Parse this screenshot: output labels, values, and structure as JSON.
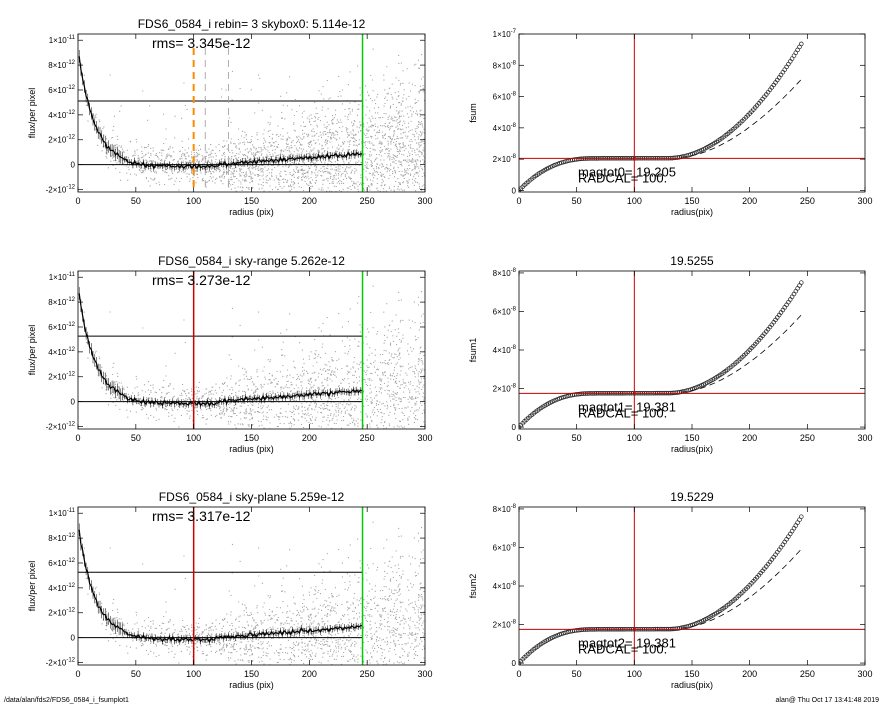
{
  "footer": {
    "path": "/data/alan/fds2/FDS6_0584_i_fsumplot1",
    "user_time": "alan@  Thu Oct 17 13:41:48 2019"
  },
  "colors": {
    "scatter": "#a8a8a8",
    "profile": "#000000",
    "red_line": "#cc0000",
    "green_line": "#00cc00",
    "orange_line": "#ff8c00"
  },
  "chart_data": [
    {
      "type": "scatter",
      "title": "FDS6_0584_i rebin= 3    skybox0:  5.114e-12",
      "annotation": "rms= 3.345e-12",
      "xlabel": "radius (pix)",
      "ylabel": "flux/per pixel",
      "xlim": [
        0,
        300
      ],
      "ylim": [
        -2.2e-12,
        1.05e-11
      ],
      "xticks": [
        "0",
        "50",
        "100",
        "150",
        "200",
        "250",
        "300"
      ],
      "yticks": [
        {
          "v": -2e-12,
          "mant": "-2×10",
          "exp": "-12"
        },
        {
          "v": 0,
          "mant": "0",
          "exp": ""
        },
        {
          "v": 2e-12,
          "mant": "2×10",
          "exp": "-12"
        },
        {
          "v": 4e-12,
          "mant": "4×10",
          "exp": "-12"
        },
        {
          "v": 6e-12,
          "mant": "6×10",
          "exp": "-12"
        },
        {
          "v": 8e-12,
          "mant": "8×10",
          "exp": "-12"
        },
        {
          "v": 1e-11,
          "mant": "1×10",
          "exp": "-11"
        }
      ],
      "hlines": [
        0,
        5.114e-12
      ],
      "hline_xmax": 246,
      "vlines": [
        {
          "x": 100,
          "color": "#ff8c00",
          "style": "dashed",
          "width": 2
        },
        {
          "x": 110,
          "color": "#999999",
          "style": "dashed",
          "width": 0.8
        },
        {
          "x": 130,
          "color": "#999999",
          "style": "dashed",
          "width": 0.8
        },
        {
          "x": 246,
          "color": "#00cc00",
          "style": "solid",
          "width": 1.5
        }
      ]
    },
    {
      "type": "line",
      "title": "",
      "ylabel": "fsum",
      "xlabel": "radius(pix)",
      "xlim": [
        0,
        300
      ],
      "ylim": [
        -1e-09,
        1e-07
      ],
      "xticks": [
        "0",
        "50",
        "100",
        "150",
        "200",
        "250",
        "300"
      ],
      "yticks": [
        {
          "v": 0,
          "mant": "0",
          "exp": ""
        },
        {
          "v": 2e-08,
          "mant": "2×10",
          "exp": "-8"
        },
        {
          "v": 4e-08,
          "mant": "4×10",
          "exp": "-8"
        },
        {
          "v": 6e-08,
          "mant": "6×10",
          "exp": "-8"
        },
        {
          "v": 8e-08,
          "mant": "8×10",
          "exp": "-8"
        },
        {
          "v": 1e-07,
          "mant": "1×10",
          "exp": "-7"
        }
      ],
      "plateau": 2.05e-08,
      "end_value": 9.5e-08,
      "dashed_end": 7.2e-08,
      "hline": 2.05e-08,
      "vline": 100,
      "labels": [
        "magtot0= 19.205",
        "RADCAL= 100."
      ]
    },
    {
      "type": "scatter",
      "title": "FDS6_0584_i sky-range  5.262e-12",
      "annotation": "rms= 3.273e-12",
      "xlabel": "radius (pix)",
      "ylabel": "flux/per pixel",
      "xlim": [
        0,
        300
      ],
      "ylim": [
        -2.2e-12,
        1.05e-11
      ],
      "xticks": [
        "0",
        "50",
        "100",
        "150",
        "200",
        "250",
        "300"
      ],
      "yticks": [
        {
          "v": -2e-12,
          "mant": "-2×10",
          "exp": "-12"
        },
        {
          "v": 0,
          "mant": "0",
          "exp": ""
        },
        {
          "v": 2e-12,
          "mant": "2×10",
          "exp": "-12"
        },
        {
          "v": 4e-12,
          "mant": "4×10",
          "exp": "-12"
        },
        {
          "v": 6e-12,
          "mant": "6×10",
          "exp": "-12"
        },
        {
          "v": 8e-12,
          "mant": "8×10",
          "exp": "-12"
        },
        {
          "v": 1e-11,
          "mant": "1×10",
          "exp": "-11"
        }
      ],
      "hlines": [
        0,
        5.262e-12
      ],
      "hline_xmax": 246,
      "vlines": [
        {
          "x": 100,
          "color": "#cc0000",
          "style": "solid",
          "width": 1.5
        },
        {
          "x": 246,
          "color": "#00cc00",
          "style": "solid",
          "width": 1.5
        }
      ]
    },
    {
      "type": "line",
      "title": "19.5255",
      "ylabel": "fsum1",
      "xlabel": "radius(pix)",
      "xlim": [
        0,
        300
      ],
      "ylim": [
        -1e-09,
        8.1e-08
      ],
      "xticks": [
        "0",
        "50",
        "100",
        "150",
        "200",
        "250",
        "300"
      ],
      "yticks": [
        {
          "v": 0,
          "mant": "0",
          "exp": ""
        },
        {
          "v": 2e-08,
          "mant": "2×10",
          "exp": "-8"
        },
        {
          "v": 4e-08,
          "mant": "4×10",
          "exp": "-8"
        },
        {
          "v": 6e-08,
          "mant": "6×10",
          "exp": "-8"
        },
        {
          "v": 8e-08,
          "mant": "8×10",
          "exp": "-8"
        }
      ],
      "plateau": 1.75e-08,
      "end_value": 7.6e-08,
      "dashed_end": 5.9e-08,
      "hline": 1.75e-08,
      "vline": 100,
      "labels": [
        "magtot1= 19.381",
        "RADCAL= 100."
      ]
    },
    {
      "type": "scatter",
      "title": "FDS6_0584_i sky-plane  5.259e-12",
      "annotation": "rms= 3.317e-12",
      "xlabel": "radius (pix)",
      "ylabel": "flux/per pixel",
      "xlim": [
        0,
        300
      ],
      "ylim": [
        -2.2e-12,
        1.05e-11
      ],
      "xticks": [
        "0",
        "50",
        "100",
        "150",
        "200",
        "250",
        "300"
      ],
      "yticks": [
        {
          "v": -2e-12,
          "mant": "-2×10",
          "exp": "-12"
        },
        {
          "v": 0,
          "mant": "0",
          "exp": ""
        },
        {
          "v": 2e-12,
          "mant": "2×10",
          "exp": "-12"
        },
        {
          "v": 4e-12,
          "mant": "4×10",
          "exp": "-12"
        },
        {
          "v": 6e-12,
          "mant": "6×10",
          "exp": "-12"
        },
        {
          "v": 8e-12,
          "mant": "8×10",
          "exp": "-12"
        },
        {
          "v": 1e-11,
          "mant": "1×10",
          "exp": "-11"
        }
      ],
      "hlines": [
        0,
        5.259e-12
      ],
      "hline_xmax": 246,
      "vlines": [
        {
          "x": 100,
          "color": "#cc0000",
          "style": "solid",
          "width": 1.5
        },
        {
          "x": 246,
          "color": "#00cc00",
          "style": "solid",
          "width": 1.5
        }
      ]
    },
    {
      "type": "line",
      "title": "19.5229",
      "ylabel": "fsum2",
      "xlabel": "radius(pix)",
      "xlim": [
        0,
        300
      ],
      "ylim": [
        -1e-09,
        8.1e-08
      ],
      "xticks": [
        "0",
        "50",
        "100",
        "150",
        "200",
        "250",
        "300"
      ],
      "yticks": [
        {
          "v": 0,
          "mant": "0",
          "exp": ""
        },
        {
          "v": 2e-08,
          "mant": "2×10",
          "exp": "-8"
        },
        {
          "v": 4e-08,
          "mant": "4×10",
          "exp": "-8"
        },
        {
          "v": 6e-08,
          "mant": "6×10",
          "exp": "-8"
        },
        {
          "v": 8e-08,
          "mant": "8×10",
          "exp": "-8"
        }
      ],
      "plateau": 1.75e-08,
      "end_value": 7.7e-08,
      "dashed_end": 6e-08,
      "hline": 1.75e-08,
      "vline": 100,
      "labels": [
        "magtot2= 19.381",
        "RADCAL= 100."
      ]
    }
  ]
}
